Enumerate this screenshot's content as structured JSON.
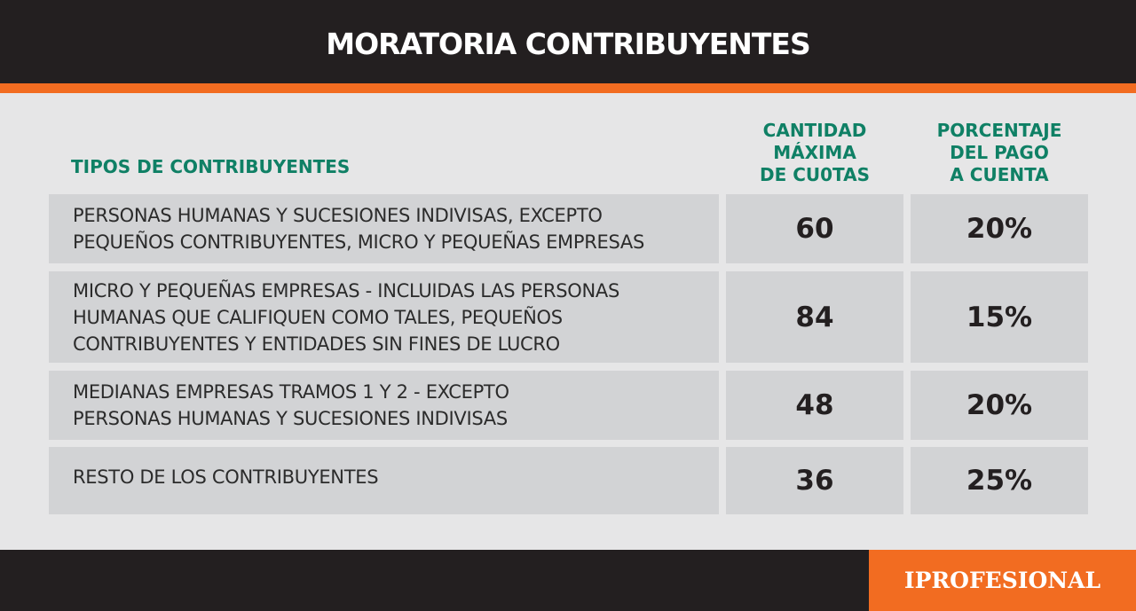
{
  "header": {
    "title": "MORATORIA CONTRIBUYENTES"
  },
  "columns": {
    "types": "TIPOS DE CONTRIBUYENTES",
    "cuotas": [
      "CANTIDAD",
      "MÁXIMA",
      "DE CU0TAS"
    ],
    "porcentaje": [
      "PORCENTAJE",
      "DEL PAGO",
      "A CUENTA"
    ]
  },
  "rows": [
    {
      "description": [
        "PERSONAS HUMANAS Y SUCESIONES INDIVISAS, EXCEPTO",
        "PEQUEÑOS CONTRIBUYENTES, MICRO Y PEQUEÑAS EMPRESAS"
      ],
      "cuotas": "60",
      "porcentaje": "20%"
    },
    {
      "description": [
        "MICRO Y PEQUEÑAS EMPRESAS - INCLUIDAS LAS PERSONAS",
        "HUMANAS QUE CALIFIQUEN COMO TALES, PEQUEÑOS",
        "CONTRIBUYENTES Y ENTIDADES SIN FINES DE LUCRO"
      ],
      "cuotas": "84",
      "porcentaje": "15%"
    },
    {
      "description": [
        "MEDIANAS EMPRESAS TRAMOS 1 Y 2 - EXCEPTO",
        "PERSONAS HUMANAS Y SUCESIONES INDIVISAS"
      ],
      "cuotas": "48",
      "porcentaje": "20%"
    },
    {
      "description": [
        "RESTO DE LOS CONTRIBUYENTES"
      ],
      "cuotas": "36",
      "porcentaje": "25%"
    }
  ],
  "footer": {
    "brand": "IPROFESIONAL"
  },
  "colors": {
    "header_bg": "#231f20",
    "accent_orange": "#f26c21",
    "heading_green": "#0f8065",
    "cell_bg": "#d2d3d5",
    "page_bg": "#e6e6e7"
  }
}
